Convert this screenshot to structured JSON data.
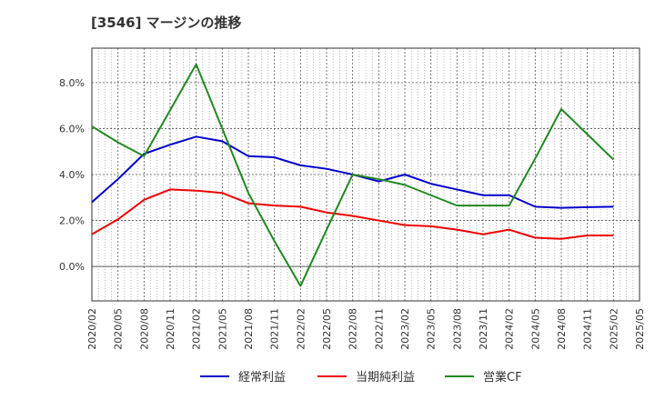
{
  "chart_data": {
    "type": "line",
    "title": "[3546]  マージンの推移",
    "x": [
      "2020/02",
      "2020/05",
      "2020/08",
      "2020/11",
      "2021/02",
      "2021/05",
      "2021/08",
      "2021/11",
      "2022/02",
      "2022/05",
      "2022/08",
      "2022/11",
      "2023/02",
      "2023/05",
      "2023/08",
      "2023/11",
      "2024/02",
      "2024/05",
      "2024/08",
      "2024/11",
      "2025/02",
      "2025/05"
    ],
    "ylim": [
      -1.5,
      9.5
    ],
    "yticks": [
      0.0,
      2.0,
      4.0,
      6.0,
      8.0
    ],
    "ytick_labels": [
      "0.0%",
      "2.0%",
      "4.0%",
      "6.0%",
      "8.0%"
    ],
    "grid": true,
    "legend_position": "bottom",
    "series": [
      {
        "name": "経常利益",
        "color": "#0000cc",
        "values": [
          2.8,
          3.8,
          4.9,
          5.3,
          5.65,
          5.45,
          4.8,
          4.75,
          4.4,
          4.25,
          4.0,
          3.7,
          4.0,
          3.6,
          3.35,
          3.1,
          3.1,
          2.6,
          2.55,
          2.58,
          2.6,
          null
        ]
      },
      {
        "name": "当期純利益",
        "color": "#ee0000",
        "values": [
          1.4,
          2.05,
          2.9,
          3.35,
          3.3,
          3.2,
          2.75,
          2.65,
          2.6,
          2.35,
          2.2,
          2.0,
          1.8,
          1.75,
          1.6,
          1.4,
          1.6,
          1.25,
          1.2,
          1.35,
          1.35,
          null
        ]
      },
      {
        "name": "営業CF",
        "color": "#228822",
        "values": [
          6.1,
          5.4,
          4.8,
          6.8,
          8.8,
          6.0,
          3.2,
          1.1,
          -0.85,
          1.6,
          4.0,
          3.8,
          3.55,
          3.1,
          2.65,
          2.65,
          2.65,
          4.7,
          6.85,
          5.75,
          4.65,
          null
        ]
      }
    ]
  }
}
